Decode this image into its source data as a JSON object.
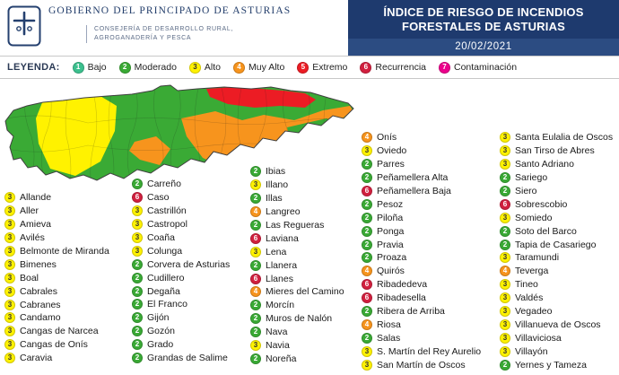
{
  "header": {
    "government": "GOBIERNO DEL PRINCIPADO DE ASTURIAS",
    "department_line1": "CONSEJERÍA DE DESARROLLO RURAL,",
    "department_line2": "AGROGANADERÍA Y PESCA"
  },
  "title_box": {
    "line1": "ÍNDICE DE RIESGO DE INCENDIOS",
    "line2": "FORESTALES DE ASTURIAS",
    "date": "20/02/2021",
    "bg": "#1e3a6e"
  },
  "legend": {
    "label": "LEYENDA:",
    "items": [
      {
        "level": 1,
        "label": "Bajo"
      },
      {
        "level": 2,
        "label": "Moderado"
      },
      {
        "level": 3,
        "label": "Alto"
      },
      {
        "level": 4,
        "label": "Muy Alto"
      },
      {
        "level": 5,
        "label": "Extremo"
      },
      {
        "level": 6,
        "label": "Recurrencia"
      },
      {
        "level": 7,
        "label": "Contaminación"
      }
    ]
  },
  "levels": {
    "1": {
      "color": "#3cc08e",
      "text": "#ffffff"
    },
    "2": {
      "color": "#3aaa35",
      "text": "#ffffff"
    },
    "3": {
      "color": "#fff200",
      "text": "#333333"
    },
    "4": {
      "color": "#f7941d",
      "text": "#ffffff"
    },
    "5": {
      "color": "#ec1c24",
      "text": "#ffffff"
    },
    "6": {
      "color": "#d2203f",
      "text": "#ffffff"
    },
    "7": {
      "color": "#ec008c",
      "text": "#ffffff"
    }
  },
  "municipalities": {
    "columns": [
      [
        {
          "level": 3,
          "name": "Allande"
        },
        {
          "level": 3,
          "name": "Aller"
        },
        {
          "level": 3,
          "name": "Amieva"
        },
        {
          "level": 3,
          "name": "Avilés"
        },
        {
          "level": 3,
          "name": "Belmonte de Miranda"
        },
        {
          "level": 3,
          "name": "Bimenes"
        },
        {
          "level": 3,
          "name": "Boal"
        },
        {
          "level": 3,
          "name": "Cabrales"
        },
        {
          "level": 3,
          "name": "Cabranes"
        },
        {
          "level": 3,
          "name": "Candamo"
        },
        {
          "level": 3,
          "name": "Cangas de Narcea"
        },
        {
          "level": 3,
          "name": "Cangas de Onís"
        },
        {
          "level": 3,
          "name": "Caravia"
        }
      ],
      [
        {
          "level": 2,
          "name": "Carreño"
        },
        {
          "level": 6,
          "name": "Caso"
        },
        {
          "level": 3,
          "name": "Castrillón"
        },
        {
          "level": 3,
          "name": "Castropol"
        },
        {
          "level": 3,
          "name": "Coaña"
        },
        {
          "level": 3,
          "name": "Colunga"
        },
        {
          "level": 2,
          "name": "Corvera de Asturias"
        },
        {
          "level": 2,
          "name": "Cudillero"
        },
        {
          "level": 2,
          "name": "Degaña"
        },
        {
          "level": 2,
          "name": "El Franco"
        },
        {
          "level": 2,
          "name": "Gijón"
        },
        {
          "level": 2,
          "name": "Gozón"
        },
        {
          "level": 2,
          "name": "Grado"
        },
        {
          "level": 2,
          "name": "Grandas de Salime"
        }
      ],
      [
        {
          "level": 2,
          "name": "Ibias"
        },
        {
          "level": 3,
          "name": "Illano"
        },
        {
          "level": 2,
          "name": "Illas"
        },
        {
          "level": 4,
          "name": "Langreo"
        },
        {
          "level": 2,
          "name": "Las Regueras"
        },
        {
          "level": 6,
          "name": "Laviana"
        },
        {
          "level": 3,
          "name": "Lena"
        },
        {
          "level": 2,
          "name": "Llanera"
        },
        {
          "level": 6,
          "name": "Llanes"
        },
        {
          "level": 4,
          "name": "Mieres del Camino"
        },
        {
          "level": 2,
          "name": "Morcín"
        },
        {
          "level": 2,
          "name": "Muros de Nalón"
        },
        {
          "level": 2,
          "name": "Nava"
        },
        {
          "level": 3,
          "name": "Navia"
        },
        {
          "level": 2,
          "name": "Noreña"
        }
      ],
      [
        {
          "level": 4,
          "name": "Onís"
        },
        {
          "level": 3,
          "name": "Oviedo"
        },
        {
          "level": 2,
          "name": "Parres"
        },
        {
          "level": 2,
          "name": "Peñamellera Alta"
        },
        {
          "level": 6,
          "name": "Peñamellera Baja"
        },
        {
          "level": 2,
          "name": "Pesoz"
        },
        {
          "level": 2,
          "name": "Piloña"
        },
        {
          "level": 2,
          "name": "Ponga"
        },
        {
          "level": 2,
          "name": "Pravia"
        },
        {
          "level": 2,
          "name": "Proaza"
        },
        {
          "level": 4,
          "name": "Quirós"
        },
        {
          "level": 6,
          "name": "Ribadedeva"
        },
        {
          "level": 6,
          "name": "Ribadesella"
        },
        {
          "level": 2,
          "name": "Ribera de Arriba"
        },
        {
          "level": 4,
          "name": "Riosa"
        },
        {
          "level": 2,
          "name": "Salas"
        },
        {
          "level": 3,
          "name": "S. Martín del Rey Aurelio"
        },
        {
          "level": 3,
          "name": "San Martín de Oscos"
        }
      ],
      [
        {
          "level": 3,
          "name": "Santa Eulalia de Oscos"
        },
        {
          "level": 3,
          "name": "San Tirso de Abres"
        },
        {
          "level": 3,
          "name": "Santo Adriano"
        },
        {
          "level": 2,
          "name": "Sariego"
        },
        {
          "level": 2,
          "name": "Siero"
        },
        {
          "level": 6,
          "name": "Sobrescobio"
        },
        {
          "level": 3,
          "name": "Somiedo"
        },
        {
          "level": 2,
          "name": "Soto del Barco"
        },
        {
          "level": 2,
          "name": "Tapia de Casariego"
        },
        {
          "level": 3,
          "name": "Taramundi"
        },
        {
          "level": 4,
          "name": "Teverga"
        },
        {
          "level": 3,
          "name": "Tineo"
        },
        {
          "level": 3,
          "name": "Valdés"
        },
        {
          "level": 3,
          "name": "Vegadeo"
        },
        {
          "level": 3,
          "name": "Villanueva de Oscos"
        },
        {
          "level": 3,
          "name": "Villaviciosa"
        },
        {
          "level": 3,
          "name": "Villayón"
        },
        {
          "level": 2,
          "name": "Yernes y Tameza"
        }
      ]
    ]
  }
}
